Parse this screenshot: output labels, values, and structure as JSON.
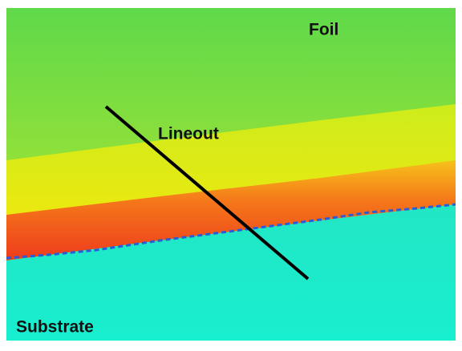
{
  "labels": {
    "foil": "Foil",
    "lineout": "Lineout",
    "substrate": "Substrate"
  }
}
